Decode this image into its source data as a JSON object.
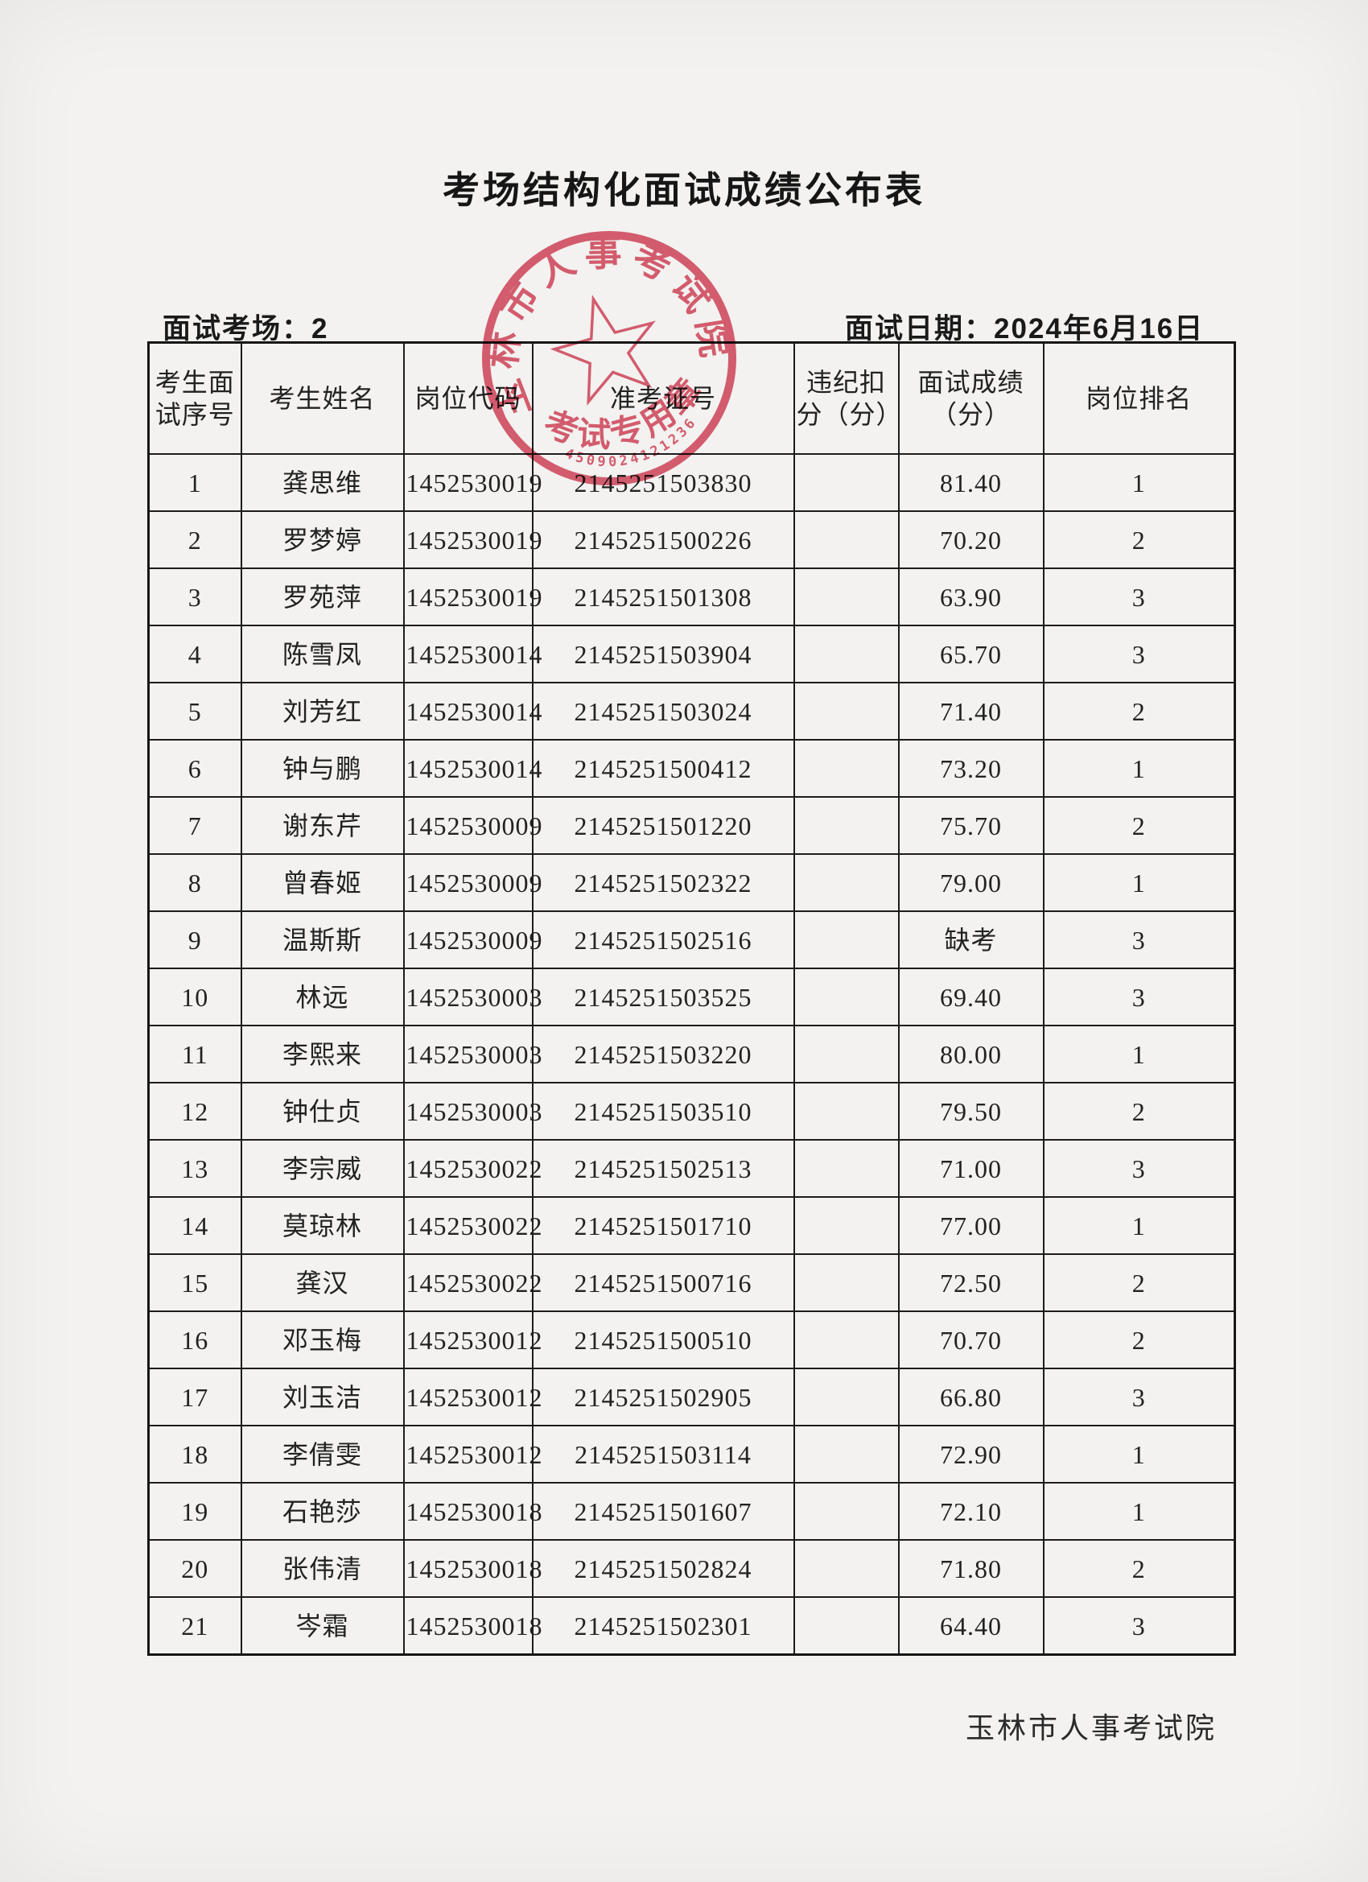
{
  "page": {
    "title": "考场结构化面试成绩公布表",
    "venue_label": "面试考场：2",
    "date_label": "面试日期：2024年6月16日",
    "footer": "玉林市人事考试院"
  },
  "stamp": {
    "org": "玉林市人事考试院",
    "seal_type": "考试专用章",
    "code": "4509024121236",
    "color": "#d63e55"
  },
  "table": {
    "headers": [
      "考生面试序号",
      "考生姓名",
      "岗位代码",
      "准考证号",
      "违纪扣分（分）",
      "面试成绩（分）",
      "岗位排名"
    ],
    "rows": [
      [
        "1",
        "龚思维",
        "1452530019",
        "2145251503830",
        "",
        "81.40",
        "1"
      ],
      [
        "2",
        "罗梦婷",
        "1452530019",
        "2145251500226",
        "",
        "70.20",
        "2"
      ],
      [
        "3",
        "罗苑萍",
        "1452530019",
        "2145251501308",
        "",
        "63.90",
        "3"
      ],
      [
        "4",
        "陈雪凤",
        "1452530014",
        "2145251503904",
        "",
        "65.70",
        "3"
      ],
      [
        "5",
        "刘芳红",
        "1452530014",
        "2145251503024",
        "",
        "71.40",
        "2"
      ],
      [
        "6",
        "钟与鹏",
        "1452530014",
        "2145251500412",
        "",
        "73.20",
        "1"
      ],
      [
        "7",
        "谢东芹",
        "1452530009",
        "2145251501220",
        "",
        "75.70",
        "2"
      ],
      [
        "8",
        "曾春姬",
        "1452530009",
        "2145251502322",
        "",
        "79.00",
        "1"
      ],
      [
        "9",
        "温斯斯",
        "1452530009",
        "2145251502516",
        "",
        "缺考",
        "3"
      ],
      [
        "10",
        "林远",
        "1452530003",
        "2145251503525",
        "",
        "69.40",
        "3"
      ],
      [
        "11",
        "李熙来",
        "1452530003",
        "2145251503220",
        "",
        "80.00",
        "1"
      ],
      [
        "12",
        "钟仕贞",
        "1452530003",
        "2145251503510",
        "",
        "79.50",
        "2"
      ],
      [
        "13",
        "李宗威",
        "1452530022",
        "2145251502513",
        "",
        "71.00",
        "3"
      ],
      [
        "14",
        "莫琼林",
        "1452530022",
        "2145251501710",
        "",
        "77.00",
        "1"
      ],
      [
        "15",
        "龚汉",
        "1452530022",
        "2145251500716",
        "",
        "72.50",
        "2"
      ],
      [
        "16",
        "邓玉梅",
        "1452530012",
        "2145251500510",
        "",
        "70.70",
        "2"
      ],
      [
        "17",
        "刘玉洁",
        "1452530012",
        "2145251502905",
        "",
        "66.80",
        "3"
      ],
      [
        "18",
        "李倩雯",
        "1452530012",
        "2145251503114",
        "",
        "72.90",
        "1"
      ],
      [
        "19",
        "石艳莎",
        "1452530018",
        "2145251501607",
        "",
        "72.10",
        "1"
      ],
      [
        "20",
        "张伟清",
        "1452530018",
        "2145251502824",
        "",
        "71.80",
        "2"
      ],
      [
        "21",
        "岑霜",
        "1452530018",
        "2145251502301",
        "",
        "64.40",
        "3"
      ]
    ]
  }
}
